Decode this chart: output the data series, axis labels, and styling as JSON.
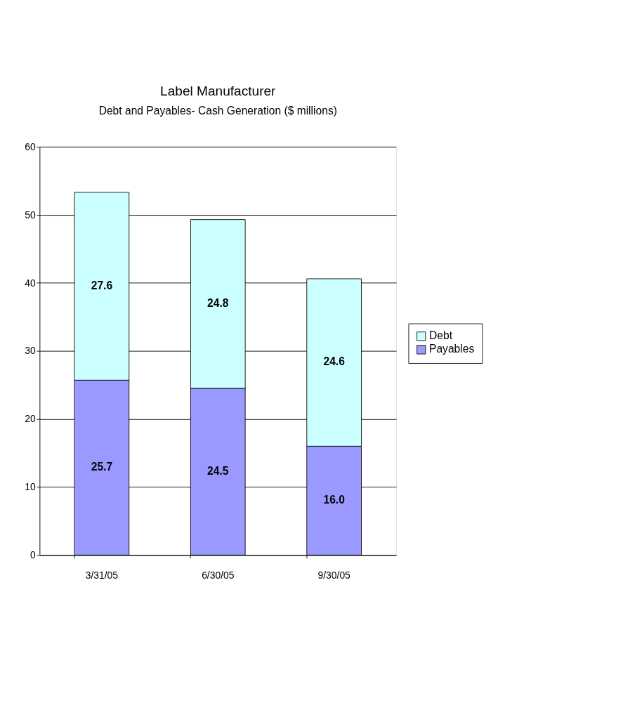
{
  "chart_data": {
    "type": "bar",
    "title": "Label Manufacturer",
    "subtitle": "Debt and Payables- Cash Generation ($ millions)",
    "categories": [
      "3/31/05",
      "6/30/05",
      "9/30/05"
    ],
    "series": [
      {
        "name": "Payables",
        "color": "#9999ff",
        "values": [
          25.7,
          24.5,
          16.0
        ],
        "value_labels": [
          "25.7",
          "24.5",
          "16.0"
        ]
      },
      {
        "name": "Debt",
        "color": "#ccffff",
        "values": [
          27.6,
          24.8,
          24.6
        ],
        "value_labels": [
          "27.6",
          "24.8",
          "24.6"
        ]
      }
    ],
    "stacked": true,
    "ylim": [
      0,
      60
    ],
    "yticks": [
      0,
      10,
      20,
      30,
      40,
      50,
      60
    ],
    "grid": "y",
    "legend": "right"
  }
}
